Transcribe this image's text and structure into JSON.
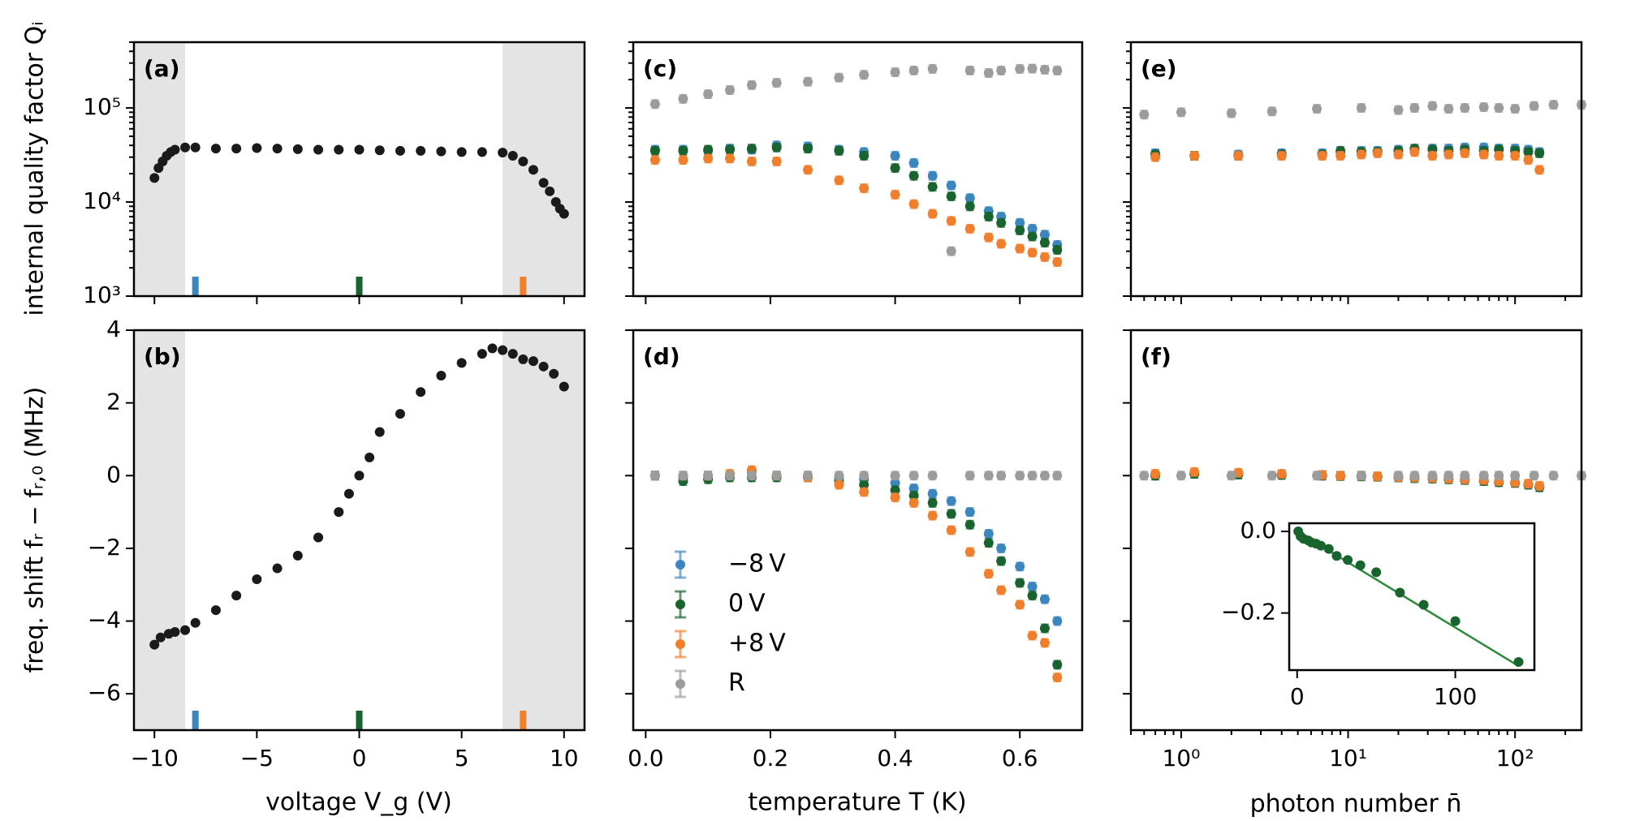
{
  "colors": {
    "neg8": "#3c86bf",
    "zero": "#19632f",
    "pos8": "#ef7f2d",
    "ref": "#9c9c9c",
    "shade": "#e4e4e4",
    "black": "#1a1a1a",
    "zeroFit": "#2a8a3a"
  },
  "legend": {
    "neg8": "−8 V",
    "zero": "0 V",
    "pos8": "+8 V",
    "ref": "R"
  },
  "chart_data": [
    {
      "panel": "a",
      "label": "(a)",
      "type": "scatter",
      "yscale": "log",
      "ylabel": "internal quality factor Qᵢ",
      "xlabel": "",
      "xlim": [
        -11,
        11
      ],
      "ylim": [
        1000,
        500000
      ],
      "ytick_labels": [
        "10³",
        "10⁴",
        "10⁵"
      ],
      "shaded_regions": [
        [
          -11,
          -8.5
        ],
        [
          7,
          11
        ]
      ],
      "markers": [
        {
          "x": -8,
          "series": "neg8"
        },
        {
          "x": 0,
          "series": "zero"
        },
        {
          "x": 8,
          "series": "pos8"
        }
      ],
      "series": [
        {
          "name": "V_g sweep",
          "key": "black",
          "x": [
            -10,
            -9.8,
            -9.6,
            -9.4,
            -9.2,
            -9,
            -8.5,
            -8,
            -7,
            -6,
            -5,
            -4,
            -3,
            -2,
            -1,
            0,
            1,
            2,
            3,
            4,
            5,
            6,
            7,
            7.5,
            8,
            8.5,
            9,
            9.3,
            9.6,
            9.8,
            10
          ],
          "y": [
            18000,
            23000,
            27000,
            31000,
            34000,
            36000,
            38000,
            38000,
            37000,
            37000,
            37500,
            37000,
            36500,
            36000,
            36000,
            36000,
            35500,
            35000,
            35000,
            34500,
            34000,
            34000,
            33500,
            31000,
            27000,
            22000,
            16000,
            13000,
            10000,
            8500,
            7500
          ]
        }
      ]
    },
    {
      "panel": "b",
      "label": "(b)",
      "type": "scatter",
      "ylabel": "freq. shift fᵣ − fᵣ,₀ (MHz)",
      "xlabel": "voltage V_g (V)",
      "xlim": [
        -11,
        11
      ],
      "ylim": [
        -7,
        4
      ],
      "xticks": [
        -10,
        -5,
        0,
        5,
        10
      ],
      "yticks": [
        -6,
        -4,
        -2,
        0,
        2,
        4
      ],
      "shaded_regions": [
        [
          -11,
          -8.5
        ],
        [
          7,
          11
        ]
      ],
      "markers": [
        {
          "x": -8,
          "series": "neg8"
        },
        {
          "x": 0,
          "series": "zero"
        },
        {
          "x": 8,
          "series": "pos8"
        }
      ],
      "series": [
        {
          "name": "V_g sweep",
          "key": "black",
          "x": [
            -10,
            -9.7,
            -9.3,
            -9,
            -8.5,
            -8,
            -7,
            -6,
            -5,
            -4,
            -3,
            -2,
            -1,
            -0.5,
            0,
            0.5,
            1,
            2,
            3,
            4,
            5,
            6,
            6.5,
            7,
            7.5,
            8,
            8.5,
            9,
            9.5,
            10
          ],
          "y": [
            -4.65,
            -4.45,
            -4.35,
            -4.3,
            -4.25,
            -4.05,
            -3.7,
            -3.3,
            -2.85,
            -2.55,
            -2.2,
            -1.7,
            -1.0,
            -0.5,
            0,
            0.5,
            1.2,
            1.7,
            2.3,
            2.75,
            3.1,
            3.35,
            3.5,
            3.45,
            3.35,
            3.2,
            3.15,
            3.0,
            2.8,
            2.45
          ]
        }
      ]
    },
    {
      "panel": "c",
      "label": "(c)",
      "type": "scatter",
      "yscale": "log",
      "xlim": [
        -0.02,
        0.7
      ],
      "ylim": [
        1000,
        500000
      ],
      "xticks": [
        0,
        0.2,
        0.4,
        0.6
      ],
      "series": [
        {
          "name": "−8 V",
          "key": "neg8",
          "x": [
            0.015,
            0.06,
            0.1,
            0.135,
            0.17,
            0.21,
            0.26,
            0.31,
            0.35,
            0.4,
            0.43,
            0.46,
            0.49,
            0.52,
            0.55,
            0.57,
            0.6,
            0.62,
            0.64,
            0.66
          ],
          "y": [
            36000,
            36000,
            35000,
            37000,
            36000,
            40000,
            39000,
            36000,
            34000,
            31000,
            26000,
            19000,
            15000,
            11000,
            8000,
            7000,
            6000,
            5200,
            4500,
            3500
          ]
        },
        {
          "name": "0 V",
          "key": "zero",
          "x": [
            0.015,
            0.06,
            0.1,
            0.135,
            0.17,
            0.21,
            0.26,
            0.31,
            0.35,
            0.4,
            0.43,
            0.46,
            0.49,
            0.52,
            0.55,
            0.57,
            0.6,
            0.62,
            0.64,
            0.66
          ],
          "y": [
            35000,
            35000,
            36000,
            36000,
            37000,
            38000,
            37000,
            35000,
            31000,
            23000,
            19000,
            14500,
            11500,
            9000,
            7000,
            6000,
            5000,
            4300,
            3700,
            3100
          ]
        },
        {
          "name": "+8 V",
          "key": "pos8",
          "x": [
            0.015,
            0.06,
            0.1,
            0.135,
            0.17,
            0.21,
            0.26,
            0.31,
            0.35,
            0.4,
            0.43,
            0.46,
            0.49,
            0.52,
            0.55,
            0.57,
            0.6,
            0.62,
            0.64,
            0.66
          ],
          "y": [
            28000,
            28000,
            29000,
            29000,
            27000,
            27000,
            22000,
            17000,
            14000,
            12000,
            9500,
            7500,
            6300,
            5200,
            4200,
            3600,
            3200,
            2900,
            2600,
            2300
          ]
        },
        {
          "name": "R",
          "key": "ref",
          "x": [
            0.015,
            0.06,
            0.1,
            0.135,
            0.17,
            0.21,
            0.26,
            0.31,
            0.35,
            0.4,
            0.43,
            0.46,
            0.49,
            0.52,
            0.55,
            0.57,
            0.6,
            0.62,
            0.64,
            0.66
          ],
          "y": [
            110000,
            125000,
            140000,
            155000,
            175000,
            185000,
            190000,
            210000,
            225000,
            240000,
            250000,
            260000,
            3000,
            250000,
            235000,
            250000,
            260000,
            262000,
            255000,
            250000
          ]
        }
      ]
    },
    {
      "panel": "d",
      "label": "(d)",
      "type": "scatter",
      "xlabel": "temperature T (K)",
      "xlim": [
        -0.02,
        0.7
      ],
      "ylim": [
        -7,
        4
      ],
      "xticks": [
        0,
        0.2,
        0.4,
        0.6
      ],
      "xtick_labels": [
        "0.0",
        "0.2",
        "0.4",
        "0.6"
      ],
      "series": [
        {
          "name": "−8 V",
          "key": "neg8",
          "x": [
            0.015,
            0.06,
            0.1,
            0.135,
            0.17,
            0.21,
            0.26,
            0.31,
            0.35,
            0.4,
            0.43,
            0.46,
            0.49,
            0.52,
            0.55,
            0.57,
            0.6,
            0.62,
            0.64,
            0.66
          ],
          "y": [
            0,
            -0.05,
            0,
            0,
            0.1,
            0,
            0,
            -0.05,
            -0.1,
            -0.2,
            -0.35,
            -0.5,
            -0.7,
            -1.0,
            -1.6,
            -2.0,
            -2.5,
            -3.05,
            -3.4,
            -4.0
          ]
        },
        {
          "name": "0 V",
          "key": "zero",
          "x": [
            0.015,
            0.06,
            0.1,
            0.135,
            0.17,
            0.21,
            0.26,
            0.31,
            0.35,
            0.4,
            0.43,
            0.46,
            0.49,
            0.52,
            0.55,
            0.57,
            0.6,
            0.62,
            0.64,
            0.66
          ],
          "y": [
            0,
            -0.15,
            -0.1,
            -0.05,
            -0.05,
            -0.05,
            -0.05,
            -0.15,
            -0.25,
            -0.4,
            -0.55,
            -0.75,
            -1.05,
            -1.35,
            -1.85,
            -2.35,
            -2.95,
            -3.3,
            -4.2,
            -5.2
          ]
        },
        {
          "name": "+8 V",
          "key": "pos8",
          "x": [
            0.015,
            0.06,
            0.1,
            0.135,
            0.17,
            0.21,
            0.26,
            0.31,
            0.35,
            0.4,
            0.43,
            0.46,
            0.49,
            0.52,
            0.55,
            0.57,
            0.6,
            0.62,
            0.64,
            0.66
          ],
          "y": [
            0,
            0,
            0,
            0.05,
            0.15,
            0,
            -0.05,
            -0.25,
            -0.45,
            -0.6,
            -0.75,
            -1.1,
            -1.5,
            -2.1,
            -2.7,
            -3.15,
            -3.55,
            -4.4,
            -4.6,
            -5.55
          ]
        },
        {
          "name": "R",
          "key": "ref",
          "x": [
            0.015,
            0.06,
            0.1,
            0.135,
            0.17,
            0.21,
            0.26,
            0.31,
            0.35,
            0.4,
            0.43,
            0.46,
            0.52,
            0.55,
            0.57,
            0.6,
            0.62,
            0.64,
            0.66
          ],
          "y": [
            0,
            0,
            0,
            0,
            0,
            0,
            0,
            0,
            0,
            0,
            0,
            0,
            0,
            0,
            0,
            0,
            0,
            0,
            0
          ]
        }
      ]
    },
    {
      "panel": "e",
      "label": "(e)",
      "type": "scatter",
      "xscale": "log",
      "yscale": "log",
      "xlim": [
        0.5,
        250
      ],
      "ylim": [
        1000,
        500000
      ],
      "series": [
        {
          "name": "−8 V",
          "key": "neg8",
          "x": [
            0.7,
            1.2,
            2.2,
            4,
            7,
            9,
            12,
            15,
            20,
            25,
            32,
            40,
            50,
            65,
            80,
            100,
            120,
            140
          ],
          "y": [
            33000,
            31000,
            32000,
            33000,
            33000,
            34000,
            35000,
            35000,
            36000,
            36000,
            37000,
            37000,
            38000,
            38000,
            37000,
            37000,
            36000,
            34000
          ]
        },
        {
          "name": "0 V",
          "key": "zero",
          "x": [
            0.7,
            1.2,
            2.2,
            4,
            7,
            9,
            12,
            15,
            20,
            25,
            32,
            40,
            50,
            65,
            80,
            100,
            120,
            140
          ],
          "y": [
            32000,
            31000,
            31000,
            32000,
            32000,
            35000,
            34000,
            34000,
            35000,
            37000,
            36000,
            35000,
            36000,
            35000,
            36000,
            35000,
            34000,
            33000
          ]
        },
        {
          "name": "+8 V",
          "key": "pos8",
          "x": [
            0.7,
            1.2,
            2.2,
            4,
            7,
            9,
            12,
            15,
            20,
            25,
            32,
            40,
            50,
            65,
            80,
            100,
            120,
            140
          ],
          "y": [
            30000,
            31000,
            31000,
            31000,
            31000,
            31000,
            32000,
            33000,
            32000,
            34000,
            31000,
            32000,
            33000,
            32000,
            31000,
            31000,
            28000,
            22000
          ]
        },
        {
          "name": "R",
          "key": "ref",
          "x": [
            0.6,
            1.0,
            2.0,
            3.5,
            6.5,
            12,
            20,
            25,
            32,
            40,
            50,
            65,
            80,
            100,
            130,
            170,
            250
          ],
          "y": [
            85000,
            90000,
            88000,
            92000,
            98000,
            100000,
            95000,
            100000,
            105000,
            98000,
            100000,
            102000,
            100000,
            98000,
            105000,
            108000,
            108000
          ]
        }
      ]
    },
    {
      "panel": "f",
      "label": "(f)",
      "type": "scatter",
      "xscale": "log",
      "xlabel": "photon number n̄",
      "xlim": [
        0.5,
        250
      ],
      "ylim": [
        -7,
        4
      ],
      "xtick_labels": [
        "10⁰",
        "10¹",
        "10²"
      ],
      "series": [
        {
          "name": "−8 V",
          "key": "neg8",
          "x": [
            0.7,
            1.2,
            2.2,
            4,
            7,
            9,
            12,
            15,
            20,
            25,
            32,
            40,
            50,
            65,
            80,
            100,
            120,
            140
          ],
          "y": [
            0,
            0.05,
            0.03,
            0.02,
            0,
            -0.01,
            -0.02,
            -0.03,
            -0.05,
            -0.07,
            -0.08,
            -0.1,
            -0.12,
            -0.15,
            -0.18,
            -0.2,
            -0.25,
            -0.32
          ]
        },
        {
          "name": "0 V",
          "key": "zero",
          "x": [
            0.7,
            1.2,
            2.2,
            4,
            7,
            9,
            12,
            15,
            20,
            25,
            32,
            40,
            50,
            65,
            80,
            100,
            120,
            140
          ],
          "y": [
            0,
            0.05,
            0.03,
            0.02,
            0,
            -0.01,
            -0.02,
            -0.03,
            -0.05,
            -0.07,
            -0.08,
            -0.1,
            -0.12,
            -0.15,
            -0.18,
            -0.2,
            -0.25,
            -0.32
          ]
        },
        {
          "name": "+8 V",
          "key": "pos8",
          "x": [
            0.7,
            1.2,
            2.2,
            4,
            7,
            9,
            12,
            15,
            20,
            25,
            32,
            40,
            50,
            65,
            80,
            100,
            120,
            140
          ],
          "y": [
            0.05,
            0.1,
            0.08,
            0.05,
            0.02,
            0,
            0,
            -0.02,
            -0.04,
            -0.05,
            -0.06,
            -0.08,
            -0.1,
            -0.12,
            -0.15,
            -0.18,
            -0.22,
            -0.28
          ]
        },
        {
          "name": "R",
          "key": "ref",
          "x": [
            0.6,
            1.0,
            2.0,
            3.5,
            6.5,
            12,
            20,
            25,
            32,
            40,
            50,
            65,
            80,
            100,
            130,
            170,
            250
          ],
          "y": [
            0,
            0,
            0,
            0,
            0,
            0,
            0,
            0,
            0,
            0,
            0,
            0,
            0,
            0,
            0,
            0,
            0
          ]
        }
      ]
    },
    {
      "panel": "f-inset",
      "type": "line",
      "xlim": [
        -5,
        150
      ],
      "ylim": [
        -0.34,
        0.02
      ],
      "xticks": [
        0,
        100
      ],
      "xtick_labels": [
        "0",
        "100"
      ],
      "ytick_labels": [
        "0.0",
        "−0.2"
      ],
      "series": [
        {
          "name": "0 V",
          "key": "zero",
          "x": [
            0.7,
            2.2,
            4,
            7,
            9,
            12,
            15,
            20,
            25,
            32,
            40,
            50,
            65,
            80,
            100,
            140
          ],
          "y": [
            0,
            -0.012,
            -0.018,
            -0.022,
            -0.027,
            -0.03,
            -0.035,
            -0.043,
            -0.06,
            -0.07,
            -0.083,
            -0.1,
            -0.15,
            -0.18,
            -0.22,
            -0.32
          ],
          "fit": [
            [
              0,
              0
            ],
            [
              140,
              -0.33
            ]
          ]
        }
      ]
    }
  ]
}
